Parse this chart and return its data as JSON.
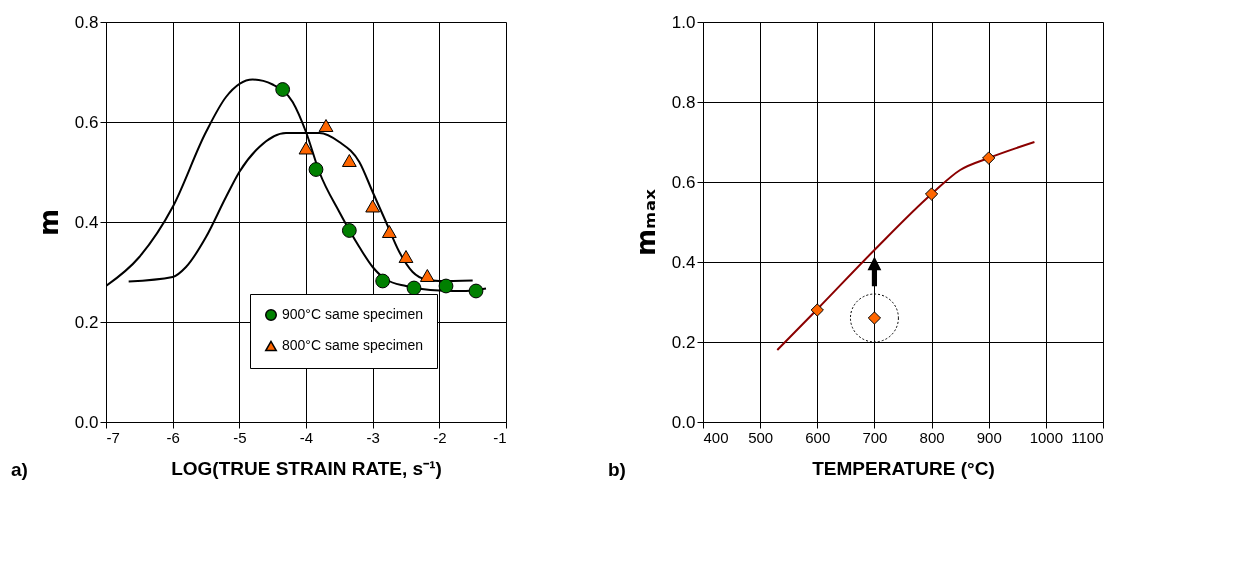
{
  "chart_data": [
    {
      "type": "scatter",
      "xlabel": "LOG(TRUE STRAIN RATE, s⁻¹)",
      "ylabel": "m",
      "xlim": [
        -7,
        -1
      ],
      "ylim": [
        0,
        0.8
      ],
      "xticks": [
        -7,
        -6,
        -5,
        -4,
        -3,
        -2,
        -1
      ],
      "yticks": [
        {
          "value": 0,
          "label": "0.0"
        },
        {
          "value": 0.2,
          "label": "0.2"
        },
        {
          "value": 0.4,
          "label": "0.4"
        },
        {
          "value": 0.6,
          "label": "0.6"
        },
        {
          "value": 0.8,
          "label": "0.8"
        }
      ],
      "grid": true,
      "legend": "bottom",
      "annotations": [
        "a)"
      ],
      "series": [
        {
          "name": "900°C same specimen",
          "marker": "circle",
          "color": "#008000",
          "x": [
            -4.35,
            -3.85,
            -3.35,
            -2.85,
            -2.38,
            -1.9,
            -1.45
          ],
          "values": [
            0.665,
            0.505,
            0.383,
            0.282,
            0.268,
            0.272,
            0.262
          ]
        },
        {
          "name": "800°C same specimen",
          "marker": "triangle",
          "color": "#ff6600",
          "x": [
            -4.0,
            -3.7,
            -3.35,
            -3.0,
            -2.75,
            -2.5,
            -2.18
          ],
          "values": [
            0.548,
            0.593,
            0.523,
            0.432,
            0.381,
            0.331,
            0.293
          ]
        },
        {
          "type": "line",
          "color": "#000000",
          "x": [
            -7,
            -6.5,
            -6,
            -5.5,
            -5.2,
            -4.8,
            -4.5,
            -4.2,
            -4,
            -3.8,
            -3.5,
            -3.2,
            -3,
            -2.8,
            -2.5,
            -2,
            -1.6,
            -1.3
          ],
          "values": [
            0.272,
            0.33,
            0.43,
            0.58,
            0.65,
            0.685,
            0.675,
            0.64,
            0.58,
            0.5,
            0.42,
            0.35,
            0.31,
            0.285,
            0.272,
            0.263,
            0.262,
            0.267
          ]
        },
        {
          "type": "line",
          "color": "#000000",
          "x": [
            -6.66,
            -6,
            -5.8,
            -5.5,
            -5.2,
            -5,
            -4.7,
            -4.3,
            -3.8,
            -3.5,
            -3.2,
            -3,
            -2.8,
            -2.6,
            -2.4,
            -2.2,
            -2,
            -1.5
          ],
          "values": [
            0.281,
            0.29,
            0.31,
            0.37,
            0.45,
            0.5,
            0.55,
            0.578,
            0.578,
            0.56,
            0.52,
            0.46,
            0.4,
            0.34,
            0.3,
            0.285,
            0.282,
            0.283
          ]
        }
      ]
    },
    {
      "type": "scatter",
      "xlabel": "TEMPERATURE (°C)",
      "ylabel": "mₘₐₓ",
      "xlim": [
        400,
        1100
      ],
      "ylim": [
        0,
        1
      ],
      "xticks": [
        400,
        500,
        600,
        700,
        800,
        900,
        1000,
        1100
      ],
      "yticks": [
        {
          "value": 0,
          "label": "0.0"
        },
        {
          "value": 0.2,
          "label": "0.2"
        },
        {
          "value": 0.4,
          "label": "0.4"
        },
        {
          "value": 0.6,
          "label": "0.6"
        },
        {
          "value": 0.8,
          "label": "0.8"
        },
        {
          "value": 1,
          "label": "1.0"
        }
      ],
      "grid": true,
      "annotations": [
        "b)"
      ],
      "series": [
        {
          "type": "line",
          "color": "#8b0000",
          "x": [
            530,
            600,
            700,
            800,
            850,
            900,
            980
          ],
          "values": [
            0.18,
            0.282,
            0.43,
            0.57,
            0.63,
            0.66,
            0.7
          ]
        },
        {
          "marker": "diamond",
          "color": "#ff6600",
          "x": [
            600,
            800,
            900
          ],
          "values": [
            0.28,
            0.57,
            0.66
          ]
        },
        {
          "marker": "diamond",
          "color": "#ff6600",
          "x": [
            700
          ],
          "values": [
            0.26
          ]
        }
      ]
    }
  ]
}
